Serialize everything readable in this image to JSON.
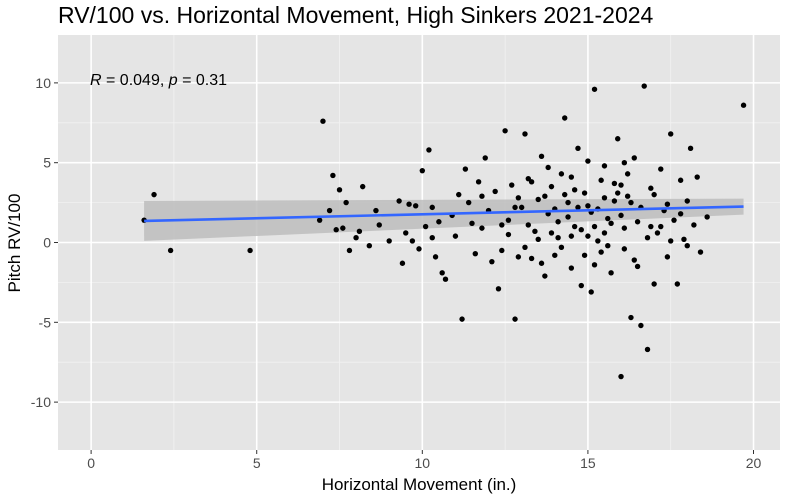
{
  "chart_data": {
    "type": "scatter",
    "title": "RV/100 vs. Horizontal Movement, High Sinkers 2021-2024",
    "xlabel": "Horizontal Movement (in.)",
    "ylabel": "Pitch RV/100",
    "xlim": [
      -1.0,
      20.8
    ],
    "ylim": [
      -13.0,
      13.0
    ],
    "x_ticks": [
      0,
      5,
      10,
      15,
      20
    ],
    "y_ticks": [
      -10,
      -5,
      0,
      5,
      10
    ],
    "grid": true,
    "annotation": {
      "r_symbol": "R",
      "r_text": " = 0.049, ",
      "p_symbol": "p",
      "p_text": " = 0.31"
    },
    "regression": {
      "x": [
        1.6,
        19.7
      ],
      "y": [
        1.35,
        2.25
      ],
      "ci_lower": [
        0.1,
        1.75
      ],
      "ci_upper": [
        2.6,
        2.75
      ],
      "color": "#3366ff",
      "band_color": "#bdbdbd"
    },
    "point_color": "#000000",
    "points": [
      [
        1.6,
        1.4
      ],
      [
        1.9,
        3.0
      ],
      [
        2.4,
        -0.5
      ],
      [
        4.8,
        -0.5
      ],
      [
        6.9,
        1.4
      ],
      [
        7.0,
        7.6
      ],
      [
        7.2,
        2.0
      ],
      [
        7.3,
        4.2
      ],
      [
        7.4,
        0.8
      ],
      [
        7.5,
        3.3
      ],
      [
        7.6,
        0.9
      ],
      [
        7.7,
        2.5
      ],
      [
        7.8,
        -0.5
      ],
      [
        8.0,
        0.3
      ],
      [
        8.1,
        0.7
      ],
      [
        8.2,
        3.5
      ],
      [
        8.4,
        -0.2
      ],
      [
        8.6,
        2.0
      ],
      [
        8.7,
        1.1
      ],
      [
        9.0,
        0.1
      ],
      [
        9.3,
        2.6
      ],
      [
        9.4,
        -1.3
      ],
      [
        9.5,
        0.6
      ],
      [
        9.6,
        2.4
      ],
      [
        9.7,
        0.1
      ],
      [
        9.8,
        2.3
      ],
      [
        9.9,
        -0.4
      ],
      [
        10.0,
        4.5
      ],
      [
        10.1,
        1.0
      ],
      [
        10.2,
        5.8
      ],
      [
        10.3,
        0.3
      ],
      [
        10.3,
        2.2
      ],
      [
        10.4,
        -0.9
      ],
      [
        10.5,
        1.3
      ],
      [
        10.6,
        -1.9
      ],
      [
        10.7,
        -2.3
      ],
      [
        10.9,
        1.7
      ],
      [
        11.0,
        0.4
      ],
      [
        11.1,
        3.0
      ],
      [
        11.2,
        -4.8
      ],
      [
        11.3,
        4.6
      ],
      [
        11.4,
        2.5
      ],
      [
        11.5,
        1.2
      ],
      [
        11.6,
        -0.7
      ],
      [
        11.7,
        3.8
      ],
      [
        11.8,
        0.9
      ],
      [
        11.9,
        5.3
      ],
      [
        12.0,
        2.0
      ],
      [
        12.1,
        -1.2
      ],
      [
        12.2,
        3.2
      ],
      [
        12.3,
        -2.9
      ],
      [
        12.4,
        1.1
      ],
      [
        12.5,
        7.0
      ],
      [
        12.6,
        0.5
      ],
      [
        12.7,
        3.6
      ],
      [
        12.8,
        -4.8
      ],
      [
        12.9,
        -0.9
      ],
      [
        13.0,
        2.2
      ],
      [
        13.1,
        6.8
      ],
      [
        13.2,
        4.0
      ],
      [
        13.3,
        -1.0
      ],
      [
        13.4,
        0.7
      ],
      [
        13.5,
        2.7
      ],
      [
        13.6,
        5.4
      ],
      [
        13.7,
        -2.1
      ],
      [
        13.8,
        1.8
      ],
      [
        13.9,
        3.5
      ],
      [
        14.0,
        -0.8
      ],
      [
        14.1,
        0.3
      ],
      [
        14.2,
        4.3
      ],
      [
        14.3,
        7.8
      ],
      [
        14.4,
        2.5
      ],
      [
        14.5,
        -1.6
      ],
      [
        14.6,
        1.0
      ],
      [
        14.7,
        5.9
      ],
      [
        14.8,
        -2.7
      ],
      [
        14.9,
        3.1
      ],
      [
        15.0,
        0.4
      ],
      [
        15.1,
        -3.1
      ],
      [
        15.2,
        9.6
      ],
      [
        15.3,
        2.1
      ],
      [
        15.4,
        -0.6
      ],
      [
        15.5,
        4.8
      ],
      [
        15.6,
        1.5
      ],
      [
        15.7,
        -1.9
      ],
      [
        15.8,
        3.7
      ],
      [
        15.9,
        6.5
      ],
      [
        16.0,
        -8.4
      ],
      [
        16.1,
        0.9
      ],
      [
        16.2,
        2.9
      ],
      [
        16.3,
        -4.7
      ],
      [
        16.4,
        5.3
      ],
      [
        16.5,
        1.3
      ],
      [
        16.6,
        -5.2
      ],
      [
        16.7,
        9.8
      ],
      [
        16.8,
        -6.7
      ],
      [
        16.9,
        3.4
      ],
      [
        17.0,
        -2.6
      ],
      [
        17.1,
        0.6
      ],
      [
        17.2,
        4.6
      ],
      [
        17.3,
        2.0
      ],
      [
        17.4,
        -0.9
      ],
      [
        17.5,
        6.8
      ],
      [
        17.6,
        1.4
      ],
      [
        17.7,
        -2.6
      ],
      [
        17.8,
        3.9
      ],
      [
        17.9,
        0.2
      ],
      [
        18.0,
        2.6
      ],
      [
        18.1,
        5.9
      ],
      [
        18.2,
        1.1
      ],
      [
        18.3,
        4.1
      ],
      [
        18.4,
        -0.6
      ],
      [
        18.6,
        1.6
      ],
      [
        19.7,
        8.6
      ],
      [
        12.6,
        1.4
      ],
      [
        12.9,
        2.8
      ],
      [
        13.2,
        1.1
      ],
      [
        13.5,
        0.2
      ],
      [
        13.8,
        4.7
      ],
      [
        14.0,
        2.1
      ],
      [
        14.2,
        -0.3
      ],
      [
        14.4,
        1.6
      ],
      [
        14.6,
        3.3
      ],
      [
        14.8,
        0.8
      ],
      [
        15.0,
        2.3
      ],
      [
        15.2,
        1.0
      ],
      [
        15.4,
        3.9
      ],
      [
        15.6,
        -0.2
      ],
      [
        15.8,
        2.6
      ],
      [
        16.0,
        1.7
      ],
      [
        16.2,
        4.3
      ],
      [
        16.4,
        -1.1
      ],
      [
        16.6,
        2.2
      ],
      [
        16.8,
        0.3
      ],
      [
        17.0,
        3.0
      ],
      [
        17.2,
        1.0
      ],
      [
        17.4,
        2.4
      ],
      [
        15.1,
        1.9
      ],
      [
        15.3,
        0.1
      ],
      [
        15.5,
        2.8
      ],
      [
        15.7,
        1.2
      ],
      [
        15.9,
        3.1
      ],
      [
        16.1,
        -0.4
      ],
      [
        16.3,
        2.5
      ],
      [
        14.1,
        1.3
      ],
      [
        14.3,
        3.0
      ],
      [
        14.5,
        0.4
      ],
      [
        14.7,
        2.2
      ],
      [
        14.9,
        -0.8
      ],
      [
        13.7,
        2.9
      ],
      [
        13.9,
        0.6
      ],
      [
        13.3,
        3.8
      ],
      [
        13.1,
        -0.3
      ],
      [
        12.8,
        2.2
      ],
      [
        15.0,
        5.1
      ],
      [
        15.5,
        0.6
      ],
      [
        16.0,
        3.6
      ],
      [
        16.5,
        -1.5
      ],
      [
        14.5,
        4.1
      ],
      [
        15.2,
        -1.4
      ],
      [
        16.1,
        5.0
      ],
      [
        13.6,
        -1.3
      ],
      [
        12.4,
        -0.5
      ],
      [
        11.8,
        2.9
      ],
      [
        16.9,
        1.0
      ],
      [
        17.5,
        0.1
      ],
      [
        18.0,
        -0.2
      ],
      [
        17.8,
        1.8
      ]
    ]
  }
}
